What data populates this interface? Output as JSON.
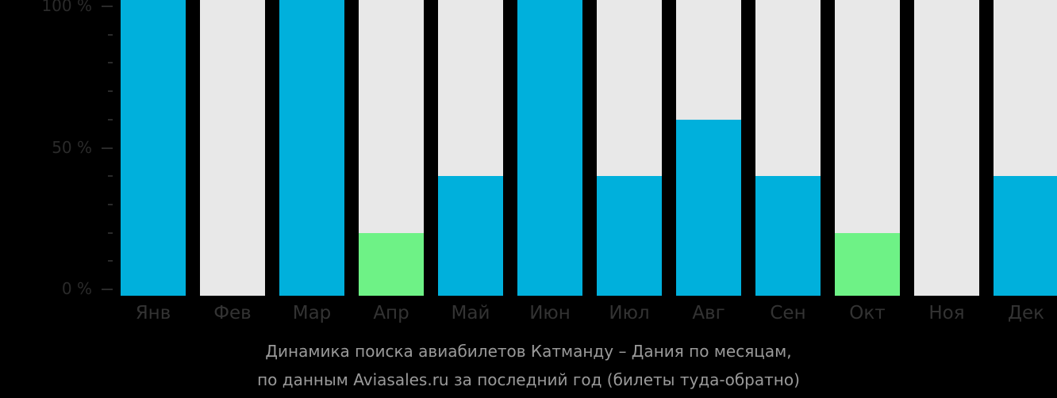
{
  "chart_data": {
    "type": "bar",
    "title": "Динамика поиска авиабилетов Катманду – Дания по месяцам, по данным Aviasales.ru за последний год (билеты туда-обратно)",
    "categories": [
      "Янв",
      "Фев",
      "Мар",
      "Апр",
      "Май",
      "Июн",
      "Июл",
      "Авг",
      "Сен",
      "Окт",
      "Ноя",
      "Дек"
    ],
    "values": [
      100,
      0,
      100,
      20,
      40,
      100,
      40,
      60,
      40,
      20,
      0,
      40
    ],
    "bar_colors": [
      "#00b0dc",
      "#00b0dc",
      "#00b0dc",
      "#6ef286",
      "#00b0dc",
      "#00b0dc",
      "#00b0dc",
      "#00b0dc",
      "#00b0dc",
      "#6ef286",
      "#00b0dc",
      "#00b0dc"
    ],
    "background_bar_color": "#e8e8e8",
    "xlabel": "",
    "ylabel": "",
    "ylim": [
      0,
      100
    ],
    "yticks": [
      "0 %",
      "50 %",
      "100 %"
    ],
    "grid": false,
    "legend": null
  },
  "axis": {
    "y_labels": [
      {
        "label": "100 %",
        "value": 100
      },
      {
        "label": "50 %",
        "value": 50
      },
      {
        "label": "0 %",
        "value": 0
      }
    ]
  },
  "caption": {
    "line1": "Динамика поиска авиабилетов Катманду – Дания по месяцам,",
    "line2": "по данным Aviasales.ru за последний год (билеты туда-обратно)"
  }
}
